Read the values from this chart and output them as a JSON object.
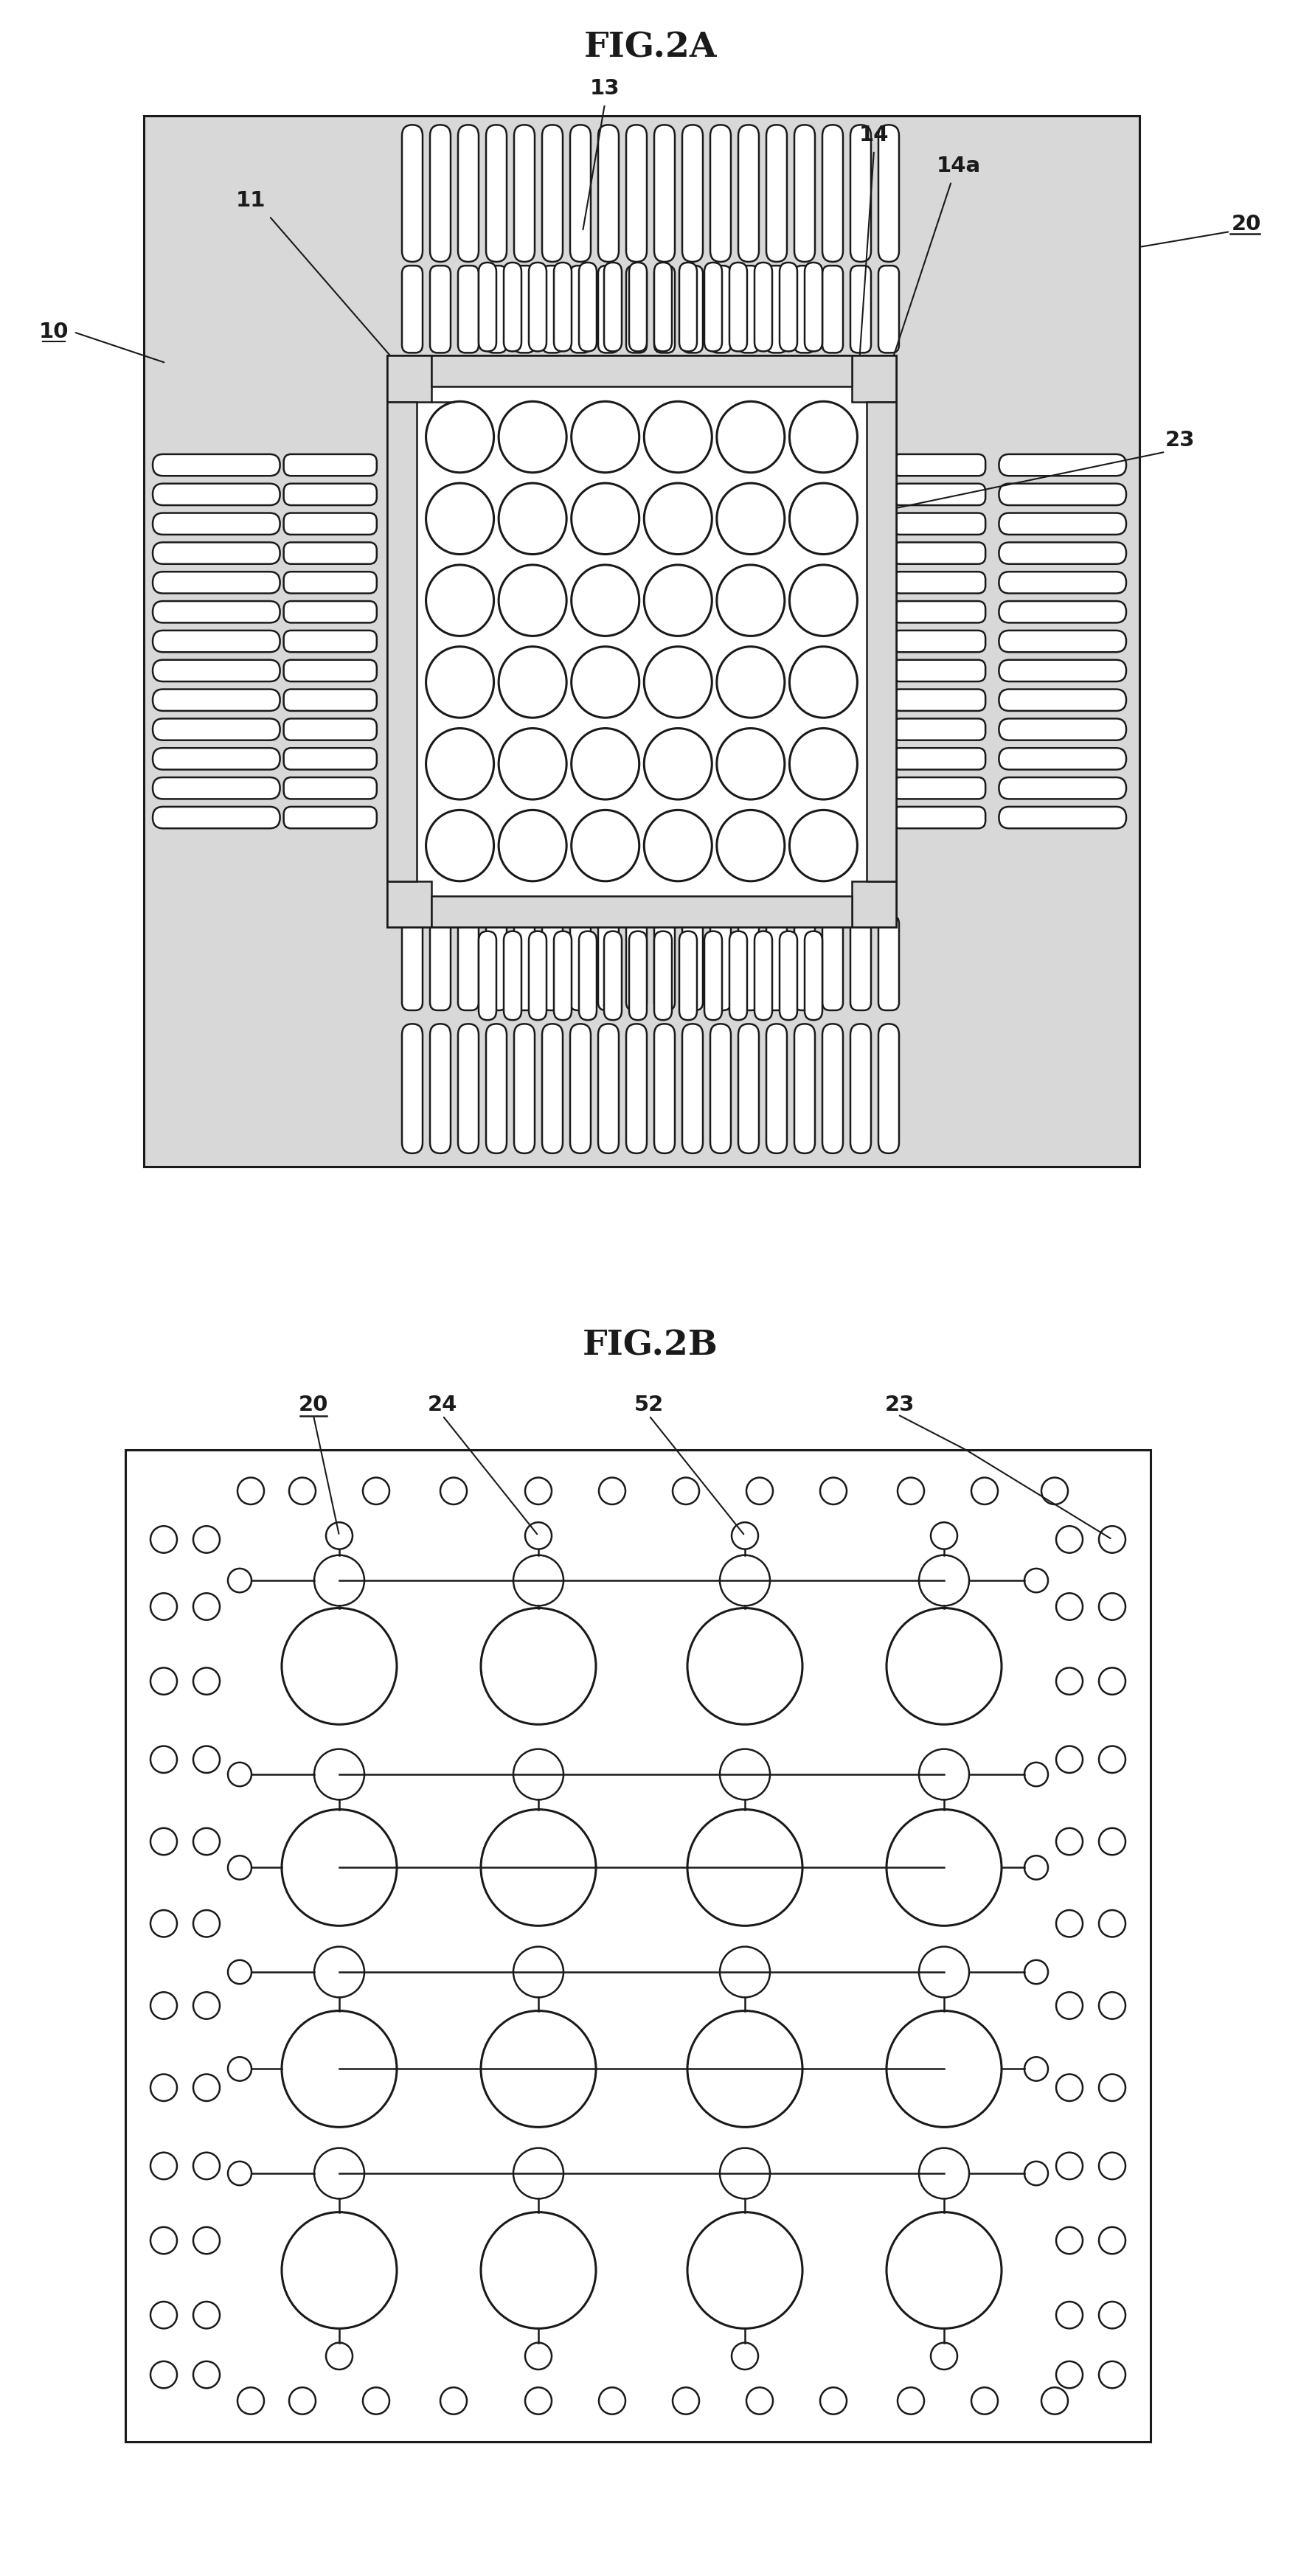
{
  "fig_title_A": "FIG.2A",
  "fig_title_B": "FIG.2B",
  "bg_color": "#ffffff",
  "line_color": "#1a1a1a",
  "gray_fill": "#d8d8d8",
  "white_fill": "#ffffff",
  "label_font_size": 21,
  "title_font_size": 34
}
